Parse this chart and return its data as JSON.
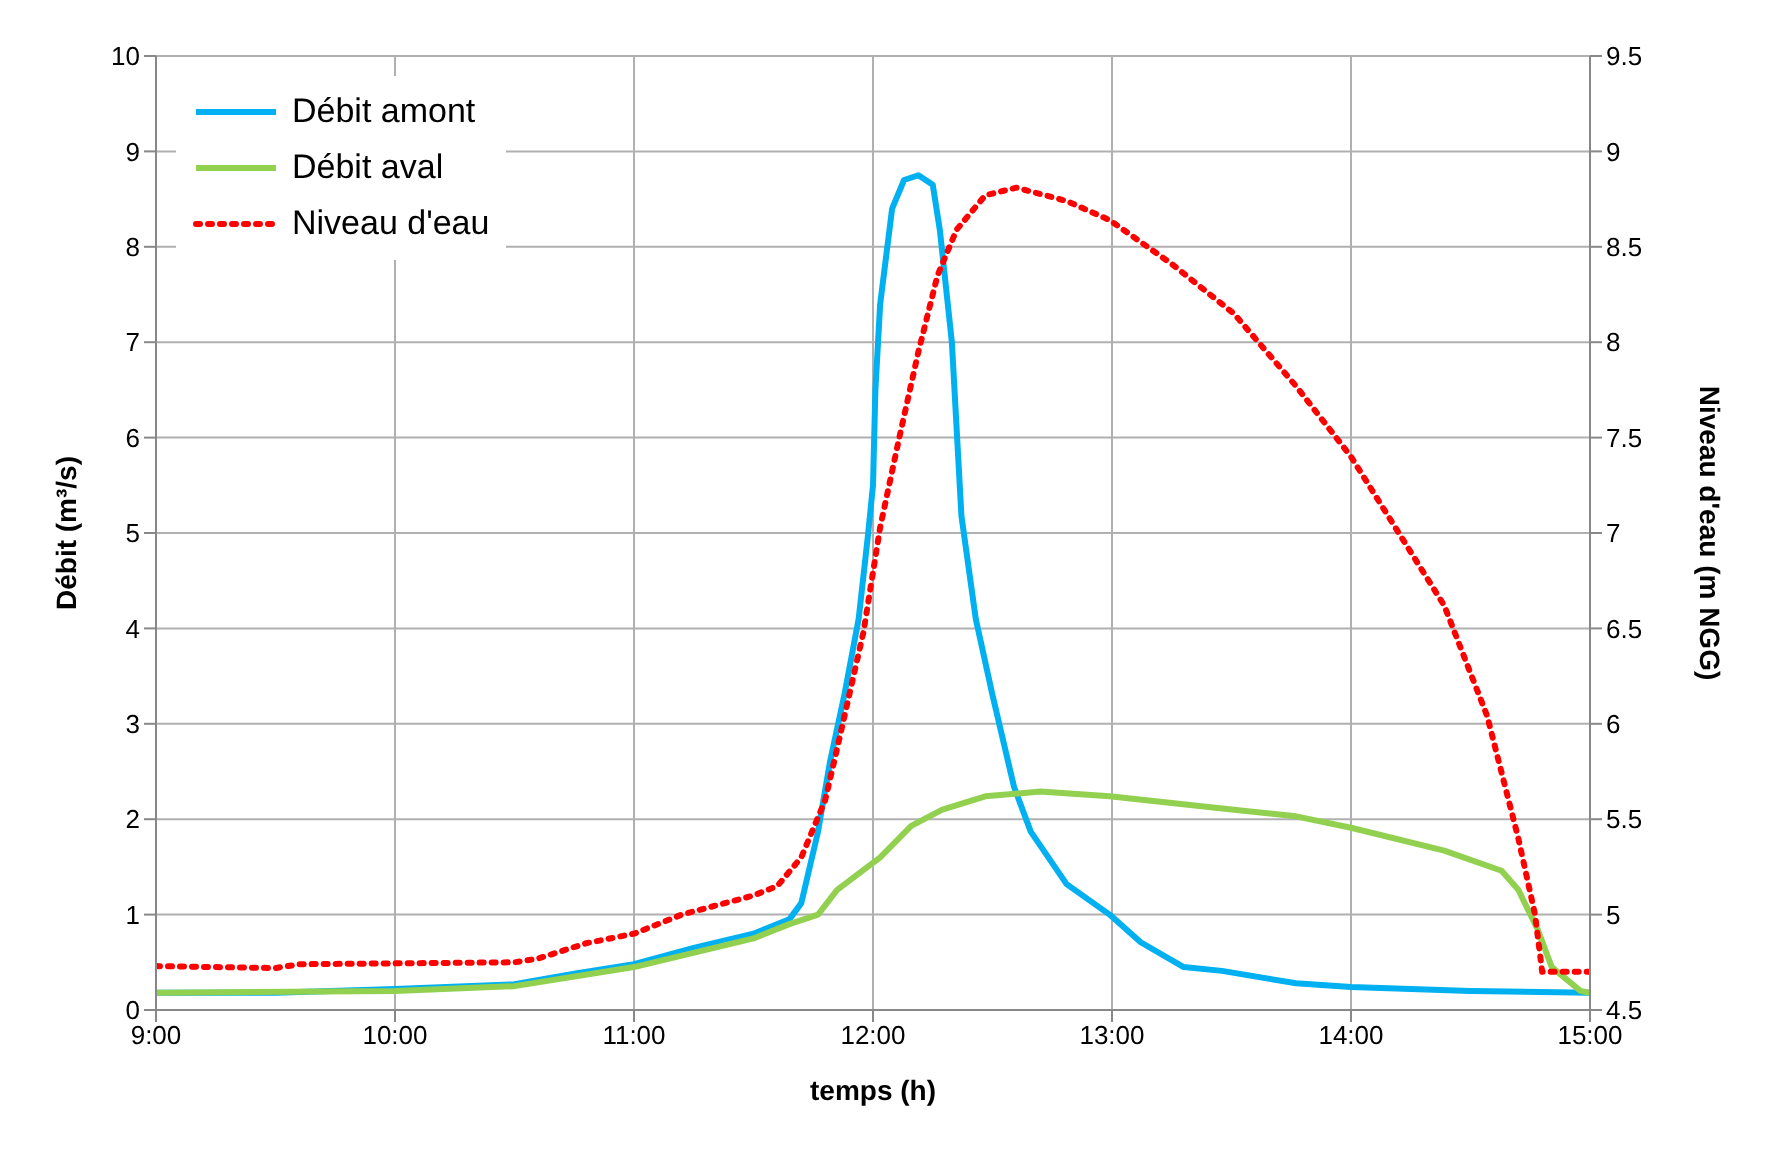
{
  "chart_data": {
    "type": "line",
    "xlabel": "temps (h)",
    "ylabel": "Débit (m³/s)",
    "y2label": "Niveau d'eau (m NGG)",
    "xlim": [
      9,
      15
    ],
    "xticks": [
      {
        "value": 9,
        "label": "9:00"
      },
      {
        "value": 10,
        "label": "10:00"
      },
      {
        "value": 11,
        "label": "11:00"
      },
      {
        "value": 12,
        "label": "12:00"
      },
      {
        "value": 13,
        "label": "13:00"
      },
      {
        "value": 14,
        "label": "14:00"
      },
      {
        "value": 15,
        "label": "15:00"
      }
    ],
    "ylim": [
      0,
      10
    ],
    "yticks": [
      0,
      1,
      2,
      3,
      4,
      5,
      6,
      7,
      8,
      9,
      10
    ],
    "y2lim": [
      4.5,
      9.5
    ],
    "y2ticks": [
      4.5,
      5,
      5.5,
      6,
      6.5,
      7,
      7.5,
      8,
      8.5,
      9,
      9.5
    ],
    "grid": true,
    "legend": "top left",
    "marker": "none",
    "series": [
      {
        "name": "Débit amont",
        "color": "#00b0f0",
        "line_style": "solid",
        "x": [
          9,
          9.5,
          10,
          10.5,
          10.75,
          11,
          11.25,
          11.5,
          11.65,
          11.7,
          11.77,
          11.82,
          11.88,
          11.94,
          11.98,
          12.0,
          12.01,
          12.03,
          12.08,
          12.13,
          12.19,
          12.25,
          12.28,
          12.33,
          12.37,
          12.43,
          12.5,
          12.59,
          12.66,
          12.81,
          12.99,
          13.12,
          13.3,
          13.46,
          13.77,
          14.0,
          14.5,
          15
        ],
        "values": [
          0.18,
          0.18,
          0.22,
          0.27,
          0.38,
          0.48,
          0.65,
          0.8,
          0.95,
          1.12,
          1.87,
          2.6,
          3.3,
          4.1,
          5.0,
          5.5,
          6.5,
          7.4,
          8.4,
          8.7,
          8.75,
          8.65,
          8.17,
          7.0,
          5.18,
          4.1,
          3.3,
          2.34,
          1.87,
          1.32,
          1.0,
          0.71,
          0.45,
          0.41,
          0.28,
          0.24,
          0.2,
          0.18
        ]
      },
      {
        "name": "Débit aval",
        "color": "#92d050",
        "line_style": "solid",
        "x": [
          9,
          10,
          10.5,
          11,
          11.5,
          11.65,
          11.77,
          11.85,
          12.03,
          12.16,
          12.29,
          12.47,
          12.7,
          12.99,
          13.25,
          13.51,
          13.77,
          14.0,
          14.39,
          14.63,
          14.7,
          14.78,
          14.84,
          14.96,
          15
        ],
        "values": [
          0.18,
          0.2,
          0.25,
          0.45,
          0.75,
          0.9,
          1.0,
          1.26,
          1.6,
          1.93,
          2.1,
          2.24,
          2.29,
          2.24,
          2.17,
          2.1,
          2.03,
          1.91,
          1.67,
          1.46,
          1.26,
          0.85,
          0.45,
          0.2,
          0.18
        ]
      },
      {
        "name": "Niveau d'eau",
        "color": "#ff0000",
        "line_style": "dotted",
        "axis": "y2",
        "x": [
          9,
          9.5,
          9.6,
          10.5,
          10.6,
          10.8,
          11,
          11.2,
          11.5,
          11.6,
          11.7,
          11.8,
          11.85,
          11.96,
          12.03,
          12.11,
          12.19,
          12.27,
          12.35,
          12.47,
          12.6,
          12.81,
          12.99,
          13.25,
          13.51,
          13.77,
          14.0,
          14.39,
          14.57,
          14.7,
          14.77,
          14.8,
          15
        ],
        "values": [
          4.73,
          4.72,
          4.74,
          4.75,
          4.77,
          4.85,
          4.9,
          5.0,
          5.1,
          5.15,
          5.3,
          5.6,
          5.87,
          6.48,
          7.03,
          7.5,
          7.95,
          8.35,
          8.59,
          8.77,
          8.81,
          8.74,
          8.64,
          8.41,
          8.15,
          7.77,
          7.4,
          6.62,
          6.04,
          5.4,
          5.0,
          4.7,
          4.7
        ]
      }
    ]
  }
}
